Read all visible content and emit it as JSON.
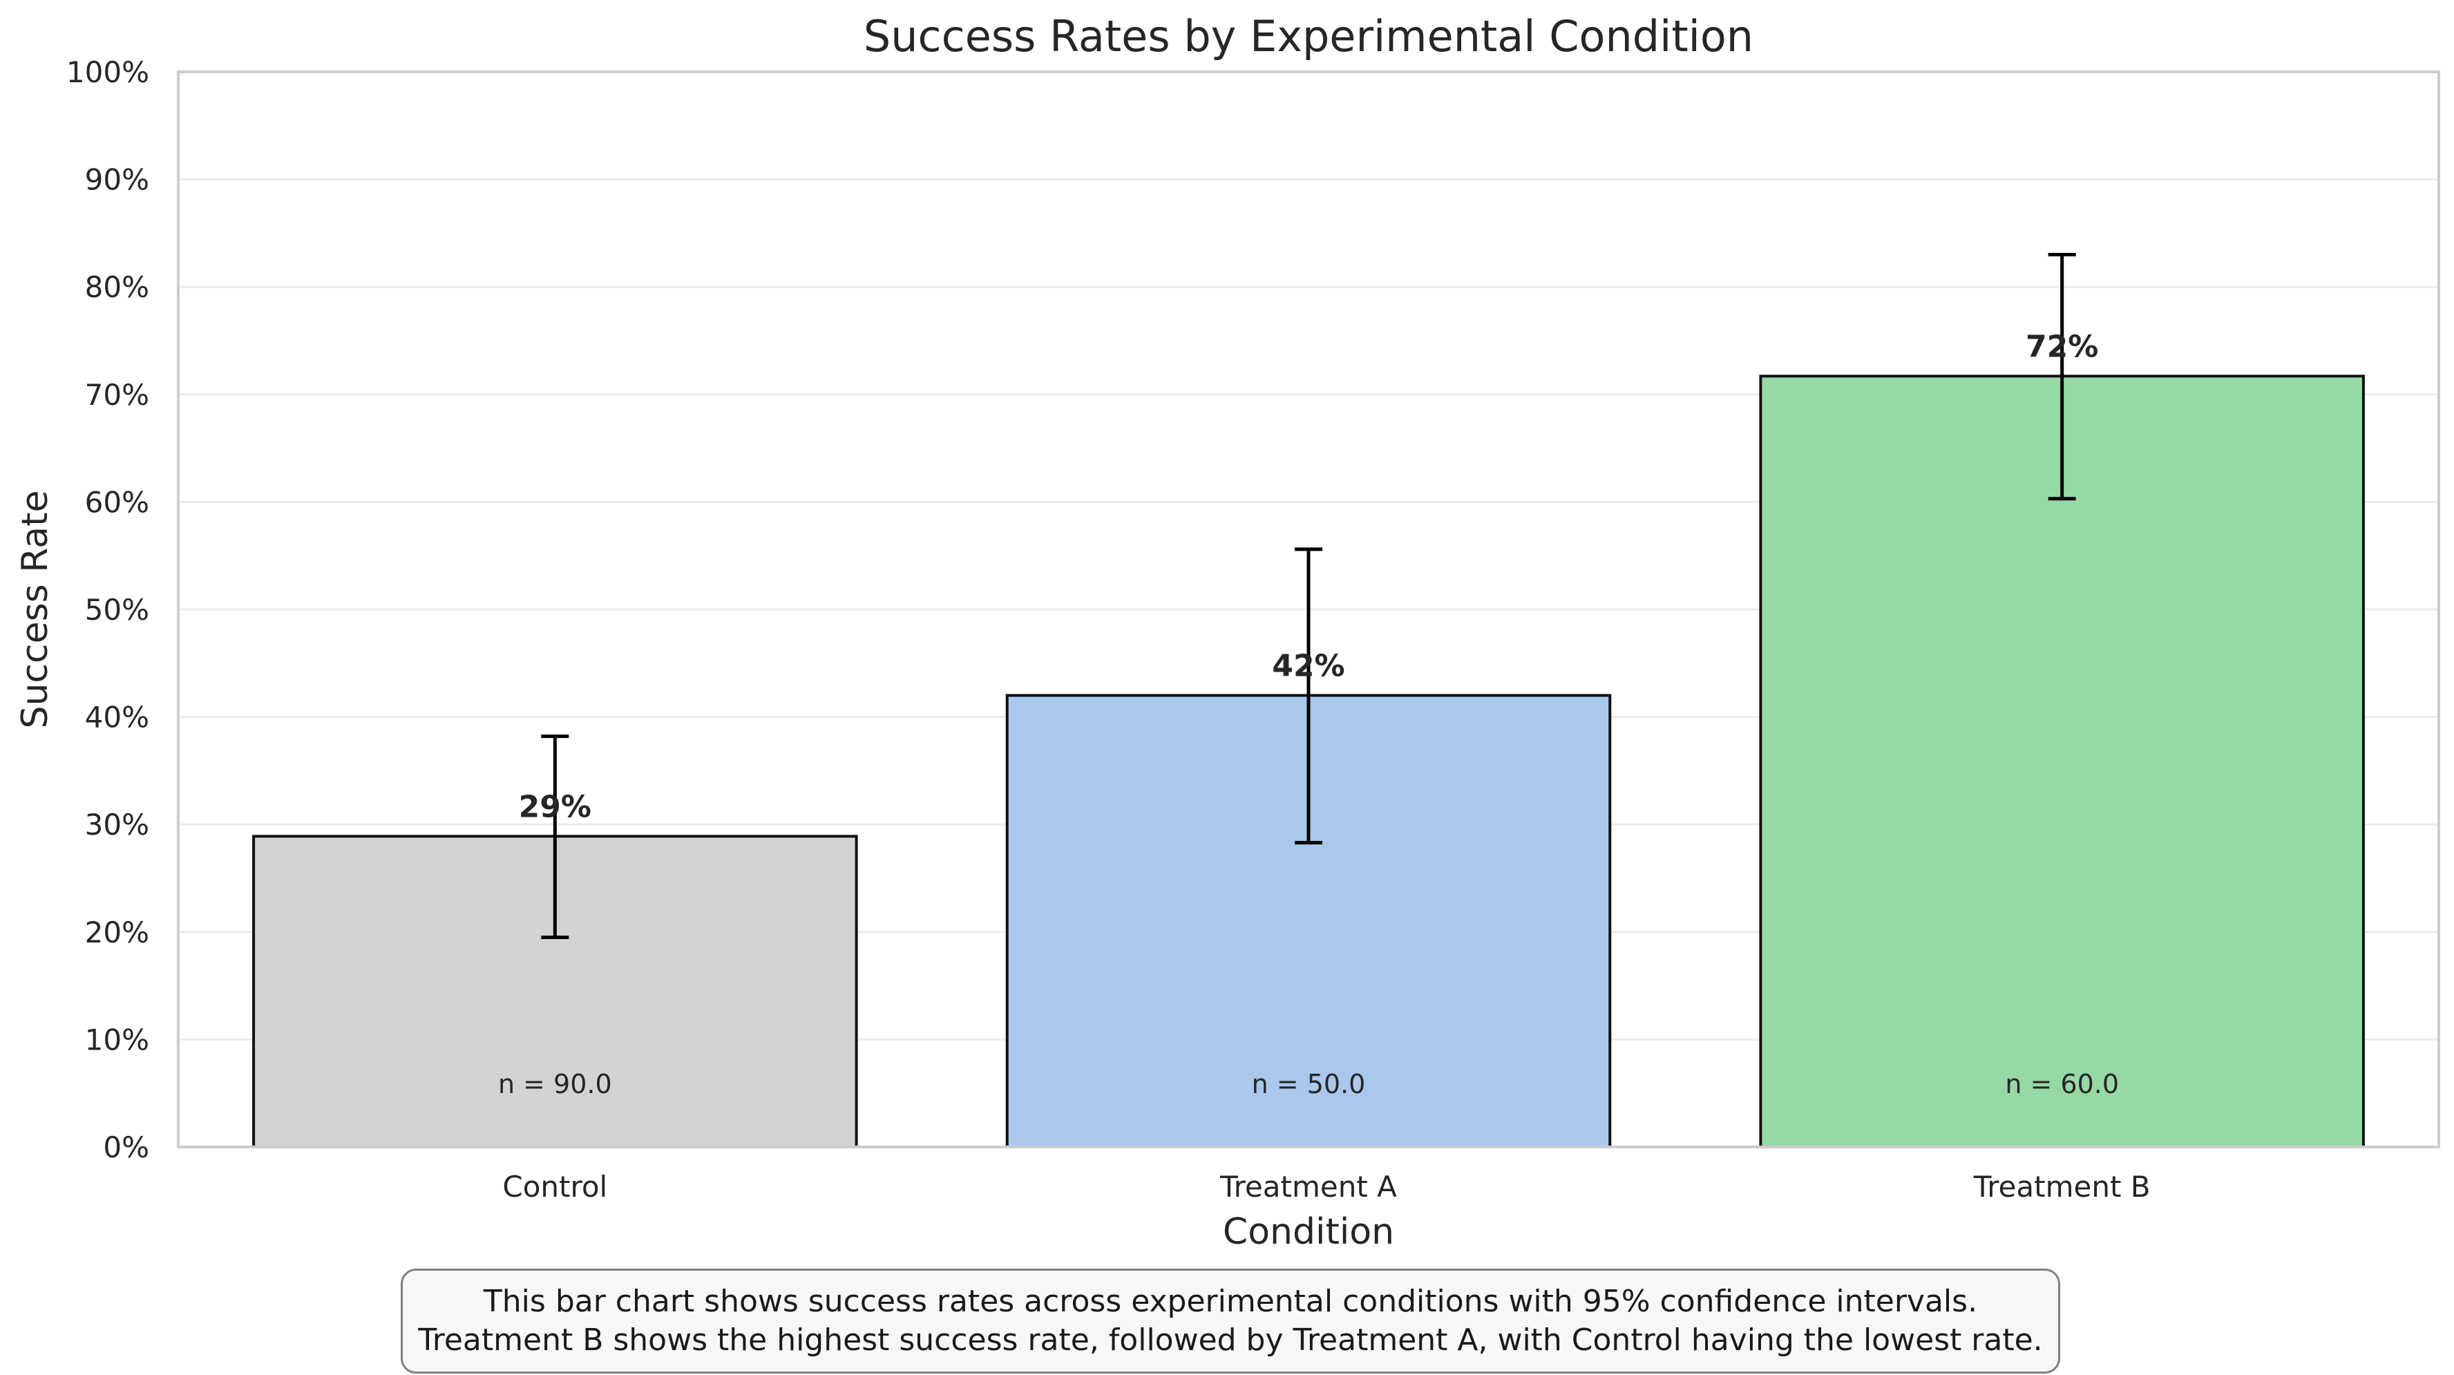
{
  "chart_data": {
    "type": "bar",
    "title": "Success Rates by Experimental Condition",
    "xlabel": "Condition",
    "ylabel": "Success Rate",
    "ylim": [
      0,
      1
    ],
    "y_ticks": [
      0,
      0.1,
      0.2,
      0.3,
      0.4,
      0.5,
      0.6,
      0.7,
      0.8,
      0.9,
      1.0
    ],
    "y_tick_labels": [
      "0%",
      "10%",
      "20%",
      "30%",
      "40%",
      "50%",
      "60%",
      "70%",
      "80%",
      "90%",
      "100%"
    ],
    "grid": true,
    "categories": [
      "Control",
      "Treatment A",
      "Treatment B"
    ],
    "values": [
      0.289,
      0.42,
      0.717
    ],
    "ci_lower": [
      0.195,
      0.283,
      0.603
    ],
    "ci_upper": [
      0.382,
      0.556,
      0.83
    ],
    "value_labels": [
      "29%",
      "42%",
      "72%"
    ],
    "n_labels": [
      "n = 90.0",
      "n = 50.0",
      "n = 60.0"
    ],
    "colors": [
      "#d3d3d3",
      "#aac8ec",
      "#97d9a6"
    ]
  },
  "caption": {
    "line1": "This bar chart shows success rates across experimental conditions with 95% confidence intervals.",
    "line2": "Treatment B shows the highest success rate, followed by Treatment A, with Control having the lowest rate."
  }
}
